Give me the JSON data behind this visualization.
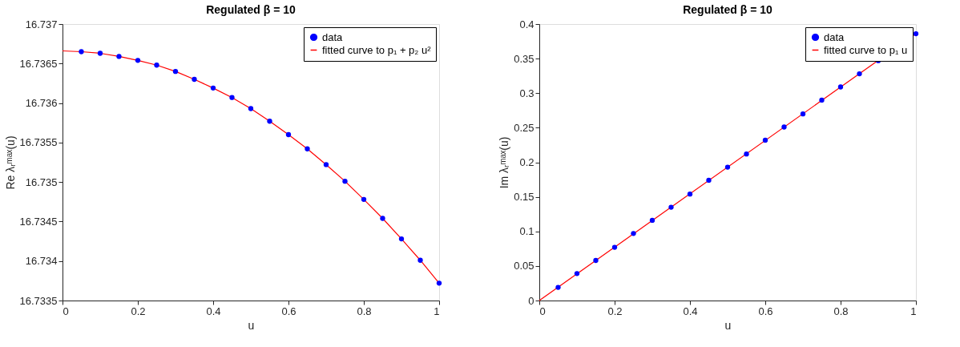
{
  "chart_data": [
    {
      "type": "line",
      "title": "Regulated β = 10",
      "xlabel": "u",
      "ylabel": "Re λᵣᵐᵃˣ(u)",
      "xlim": [
        0,
        1
      ],
      "xticks": [
        0,
        0.2,
        0.4,
        0.6,
        0.8,
        1
      ],
      "ylim": [
        16.7335,
        16.737
      ],
      "yticks": [
        16.7335,
        16.734,
        16.7345,
        16.735,
        16.7355,
        16.736,
        16.7365,
        16.737
      ],
      "grid": false,
      "legend": "top right",
      "series": [
        {
          "name": "data",
          "type": "scatter",
          "marker": "circle",
          "color": "#0000ff",
          "x": [
            0.05,
            0.1,
            0.15,
            0.2,
            0.25,
            0.3,
            0.35,
            0.4,
            0.45,
            0.5,
            0.55,
            0.6,
            0.65,
            0.7,
            0.75,
            0.8,
            0.85,
            0.9,
            0.95,
            1
          ],
          "values": [
            16.73665,
            16.73663,
            16.73659,
            16.73654,
            16.73648,
            16.7364,
            16.7363,
            16.73619,
            16.73607,
            16.73593,
            16.73577,
            16.7356,
            16.73542,
            16.73522,
            16.73501,
            16.73478,
            16.73454,
            16.73428,
            16.73401,
            16.73372
          ]
        },
        {
          "name": "fitted curve to p₁ + p₂ u²",
          "color": "#ff0000",
          "x": [
            0,
            0.05,
            0.1,
            0.15,
            0.2,
            0.25,
            0.3,
            0.35,
            0.4,
            0.45,
            0.5,
            0.55,
            0.6,
            0.65,
            0.7,
            0.75,
            0.8,
            0.85,
            0.9,
            0.95,
            1
          ],
          "values": [
            16.73666,
            16.73665,
            16.73663,
            16.73659,
            16.73654,
            16.73648,
            16.7364,
            16.7363,
            16.73619,
            16.73607,
            16.73593,
            16.73577,
            16.7356,
            16.73542,
            16.73522,
            16.73501,
            16.73478,
            16.73454,
            16.73428,
            16.73401,
            16.73372
          ]
        }
      ]
    },
    {
      "type": "line",
      "title": "Regulated β = 10",
      "xlabel": "u",
      "ylabel": "Im λᵣᵐᵃˣ(u)",
      "xlim": [
        0,
        1
      ],
      "xticks": [
        0,
        0.2,
        0.4,
        0.6,
        0.8,
        1
      ],
      "ylim": [
        0,
        0.4
      ],
      "yticks": [
        0,
        0.05,
        0.1,
        0.15,
        0.2,
        0.25,
        0.3,
        0.35,
        0.4
      ],
      "grid": false,
      "legend": "top right",
      "series": [
        {
          "name": "data",
          "type": "scatter",
          "marker": "circle",
          "color": "#0000ff",
          "x": [
            0.05,
            0.1,
            0.15,
            0.2,
            0.25,
            0.3,
            0.35,
            0.4,
            0.45,
            0.5,
            0.55,
            0.6,
            0.65,
            0.7,
            0.75,
            0.8,
            0.85,
            0.9,
            0.95,
            1
          ],
          "values": [
            0.019,
            0.039,
            0.058,
            0.077,
            0.097,
            0.116,
            0.135,
            0.154,
            0.174,
            0.193,
            0.212,
            0.232,
            0.251,
            0.27,
            0.29,
            0.309,
            0.328,
            0.347,
            null,
            0.386
          ]
        },
        {
          "name": "fitted curve to p₁ u",
          "color": "#ff0000",
          "x": [
            0,
            1
          ],
          "values": [
            0,
            0.386
          ]
        }
      ]
    }
  ]
}
